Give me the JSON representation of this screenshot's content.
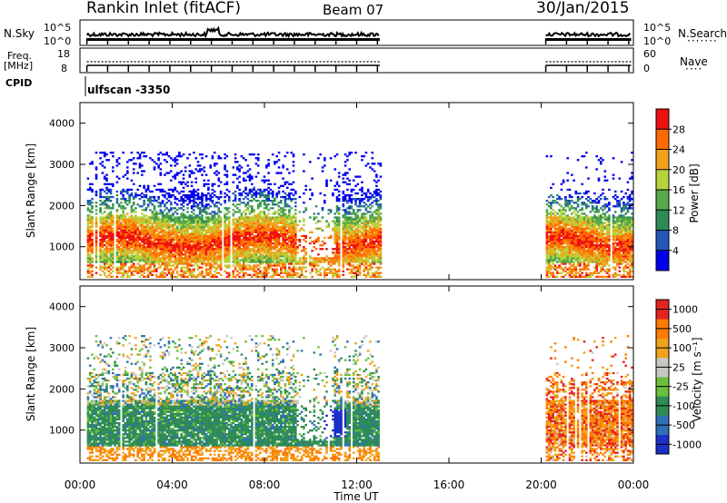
{
  "header": {
    "station": "Rankin Inlet (fitACF)",
    "beam": "Beam 07",
    "date": "30/Jan/2015"
  },
  "strip": {
    "nsky_label": "N.Sky",
    "nsky_ticks": [
      "10^5",
      "10^0"
    ],
    "nsearch_label": "N.Search",
    "nsearch_ticks": [
      "10^5",
      "10^0"
    ],
    "freq_label": "Freq.",
    "freq_unit": "[MHz]",
    "freq_ticks": [
      "18",
      "8"
    ],
    "nave_label": "Nave",
    "nave_ticks": [
      "60",
      "0"
    ],
    "cpid_label": "CPID",
    "cpid_value": "ulfscan -3350"
  },
  "chart_data": [
    {
      "type": "heatmap",
      "panel": "power",
      "ylabel": "Slant Range [km]",
      "yticks": [
        "4000",
        "3000",
        "2000",
        "1000"
      ],
      "ylim": [
        200,
        4500
      ],
      "xlim_hours": [
        0,
        24
      ],
      "colorbar_label": "Power [dB]",
      "colorbar_ticks": [
        "28",
        "24",
        "20",
        "16",
        "12",
        "8",
        "4"
      ],
      "colors": [
        "#0000ee",
        "#2256b8",
        "#2e8b57",
        "#57a84a",
        "#b7d33a",
        "#f0a21a",
        "#ff6a00",
        "#ee1111"
      ],
      "data_coverage_hours": [
        [
          0.3,
          13.0
        ],
        [
          20.2,
          23.9
        ]
      ]
    },
    {
      "type": "heatmap",
      "panel": "velocity",
      "ylabel": "Slant Range [km]",
      "yticks": [
        "4000",
        "3000",
        "2000",
        "1000"
      ],
      "ylim": [
        200,
        4500
      ],
      "xlim_hours": [
        0,
        24
      ],
      "colorbar_label": "Velocity [m s⁻¹]",
      "colorbar_ticks": [
        "1000",
        "500",
        "100",
        "25",
        "-25",
        "-100",
        "-500",
        "-1000"
      ],
      "colors": [
        "#1b2fc9",
        "#2f6fb8",
        "#2e8b57",
        "#6bbf3a",
        "#c8c8c0",
        "#f0a21a",
        "#ff7a00",
        "#e52222"
      ],
      "data_coverage_hours": [
        [
          0.3,
          13.0
        ],
        [
          20.2,
          23.9
        ]
      ]
    }
  ],
  "xaxis": {
    "ticks": [
      "00:00",
      "04:00",
      "08:00",
      "12:00",
      "16:00",
      "20:00",
      "00:00"
    ],
    "label": "Time UT"
  }
}
